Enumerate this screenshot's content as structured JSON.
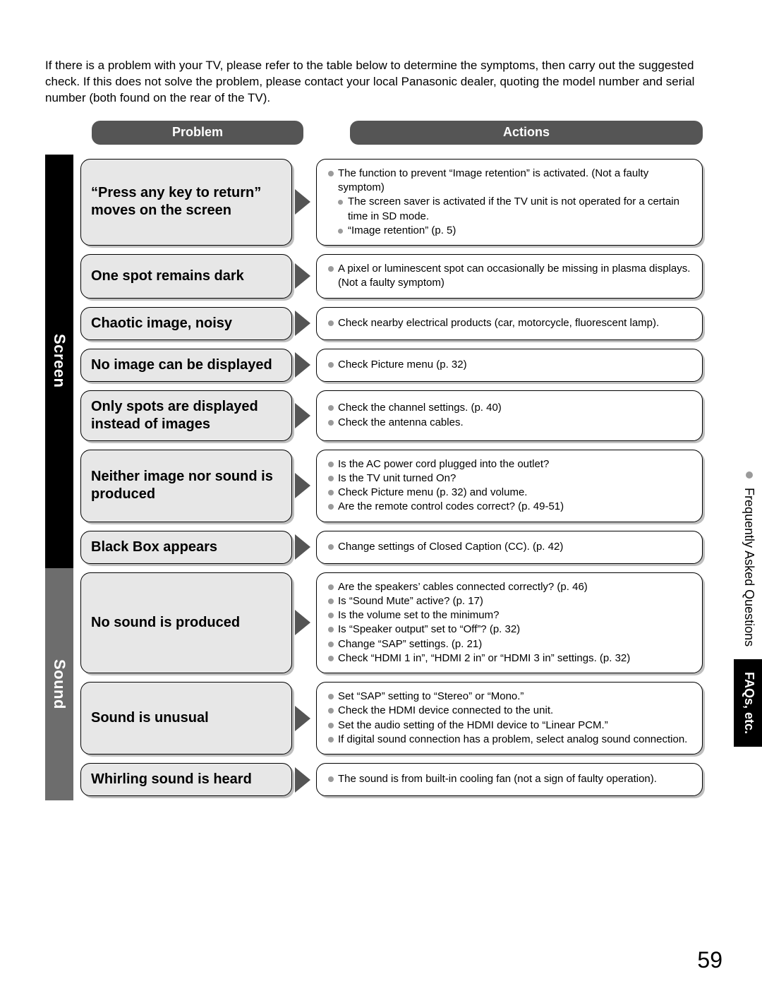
{
  "colors": {
    "pill_bg": "#555555",
    "pill_fg": "#ffffff",
    "problem_bg": "#e7e7e7",
    "card_border": "#000000",
    "shadow": "rgba(0,0,0,0.25)",
    "bullet": "#9a9a9a",
    "cat_screen_bg": "#000000",
    "cat_sound_bg": "#6d6d6d",
    "side_tab_bg": "#000000"
  },
  "intro_text": "If there is a problem with your TV, please refer to the table below to determine the symptoms, then carry out the suggested check. If this does not solve the problem, please contact your local Panasonic dealer, quoting the model number and serial number (both found on the rear of the TV).",
  "column_headers": {
    "problem": "Problem",
    "actions": "Actions"
  },
  "categories": {
    "screen": "Screen",
    "sound": "Sound"
  },
  "rows": [
    {
      "category": "screen",
      "problem": "“Press any key to return” moves on the screen",
      "actions": [
        {
          "text": "The function to prevent “Image retention” is activated. (Not a faulty symptom)",
          "sub": false
        },
        {
          "text": "The screen saver is activated if the TV unit is not operated for a certain time in SD mode.",
          "sub": true
        },
        {
          "text": "“Image retention” (p. 5)",
          "sub": true
        }
      ]
    },
    {
      "category": "screen",
      "problem": "One spot remains dark",
      "actions": [
        {
          "text": "A pixel or luminescent spot can occasionally be missing in plasma displays. (Not a faulty symptom)",
          "sub": false
        }
      ]
    },
    {
      "category": "screen",
      "problem": "Chaotic image, noisy",
      "actions": [
        {
          "text": "Check nearby electrical products (car, motorcycle, fluorescent lamp).",
          "sub": false
        }
      ]
    },
    {
      "category": "screen",
      "problem": "No image can be displayed",
      "actions": [
        {
          "text": "Check Picture menu (p. 32)",
          "sub": false
        }
      ]
    },
    {
      "category": "screen",
      "problem": "Only spots are displayed instead of images",
      "actions": [
        {
          "text": "Check the channel settings. (p. 40)",
          "sub": false
        },
        {
          "text": "Check the antenna cables.",
          "sub": false
        }
      ]
    },
    {
      "category": "screen",
      "problem": "Neither image nor sound is produced",
      "actions": [
        {
          "text": "Is the AC power cord plugged into the outlet?",
          "sub": false
        },
        {
          "text": "Is the TV unit turned On?",
          "sub": false
        },
        {
          "text": "Check Picture menu (p. 32) and volume.",
          "sub": false
        },
        {
          "text": "Are the remote control codes correct? (p. 49-51)",
          "sub": false
        }
      ]
    },
    {
      "category": "screen",
      "problem": "Black Box appears",
      "actions": [
        {
          "text": "Change settings of Closed Caption (CC). (p. 42)",
          "sub": false
        }
      ]
    },
    {
      "category": "sound",
      "problem": "No sound is produced",
      "actions": [
        {
          "text": "Are the speakers’ cables connected correctly? (p. 46)",
          "sub": false
        },
        {
          "text": "Is “Sound Mute” active? (p. 17)",
          "sub": false
        },
        {
          "text": "Is the volume set to the minimum?",
          "sub": false
        },
        {
          "text": "Is “Speaker output” set to “Off”? (p. 32)",
          "sub": false
        },
        {
          "text": "Change “SAP” settings. (p. 21)",
          "sub": false
        },
        {
          "text": "Check “HDMI 1 in”, “HDMI 2 in” or “HDMI 3 in” settings. (p. 32)",
          "sub": false
        }
      ]
    },
    {
      "category": "sound",
      "problem": "Sound is unusual",
      "actions": [
        {
          "text": "Set “SAP” setting to “Stereo” or “Mono.”",
          "sub": false
        },
        {
          "text": "Check the HDMI device connected to the unit.",
          "sub": false
        },
        {
          "text": "Set the audio setting of the HDMI device to “Linear PCM.”",
          "sub": false
        },
        {
          "text": "If digital sound connection has a problem, select analog sound connection.",
          "sub": false
        }
      ]
    },
    {
      "category": "sound",
      "problem": "Whirling sound is heard",
      "actions": [
        {
          "text": "The sound is from built-in cooling fan (not a sign of faulty operation).",
          "sub": false
        }
      ]
    }
  ],
  "side_tabs": {
    "faq_label": "Frequently Asked Questions",
    "faqs_etc": "FAQs, etc."
  },
  "page_number": "59"
}
